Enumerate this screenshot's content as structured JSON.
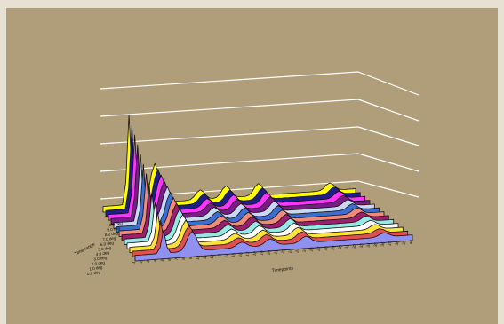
{
  "chart_data": {
    "type": "area",
    "subtype": "3d-waterfall",
    "title": "",
    "xlabel": "Timepoints",
    "ylabel": "",
    "zlabel": "Time range",
    "background_color": "#b09d79",
    "frame_color": "#e7e1d4",
    "gridlines": true,
    "grid_color": "#ffffff",
    "legend": "none",
    "ylim": [
      0,
      5
    ],
    "series_labels": [
      "0.0 deg",
      "1.0 deg",
      "2.0 deg",
      "3.0 deg",
      "4.0 deg",
      "5.0 deg",
      "6.0 deg",
      "7.0 deg",
      "8.0 deg",
      "9.0 deg",
      "10.0 deg"
    ],
    "series_colors": [
      "#8f90f0",
      "#e05050",
      "#ffe23a",
      "#ffffff",
      "#98e8e4",
      "#9c1f6d",
      "#f08a79",
      "#3a6fd1",
      "#c9d8f4",
      "#7a1c86",
      "#ff35ff",
      "#1d1f86",
      "#ffff00"
    ],
    "x_count": 40,
    "peaks": [
      {
        "x_index": 4,
        "height": 4.1
      },
      {
        "x_index": 8,
        "height": 1.8
      },
      {
        "x_index": 15,
        "height": 0.45
      },
      {
        "x_index": 19,
        "height": 0.55
      },
      {
        "x_index": 24,
        "height": 0.55
      },
      {
        "x_index": 35,
        "height": 0.35
      }
    ]
  }
}
